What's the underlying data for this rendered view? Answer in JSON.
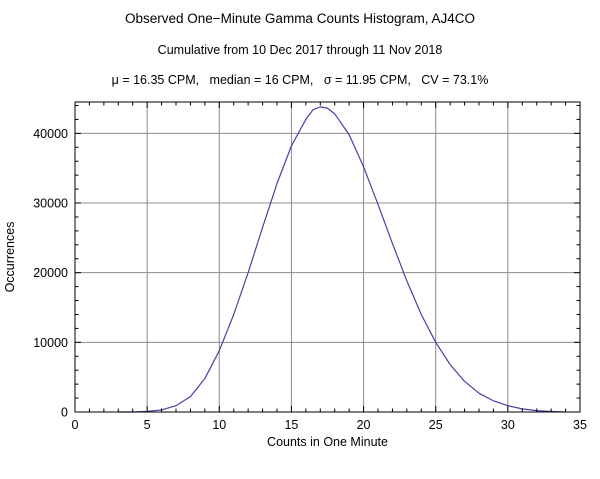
{
  "title": "Observed One−Minute Gamma Counts Histogram, AJ4CO",
  "subtitle": "Cumulative from 10 Dec 2017 through 11 Nov 2018",
  "stats_line": "μ = 16.35 CPM,   median = 16 CPM,   σ = 11.95 CPM,   CV = 73.1%",
  "chart_data": {
    "type": "line",
    "title": "Observed One−Minute Gamma Counts Histogram, AJ4CO",
    "subtitle": "Cumulative from 10 Dec 2017 through 11 Nov 2018",
    "annotations": [
      "μ = 16.35 CPM",
      "median = 16 CPM",
      "σ = 11.95 CPM",
      "CV = 73.1%"
    ],
    "xlabel": "Counts in One Minute",
    "ylabel": "Occurrences",
    "xlim": [
      0,
      35
    ],
    "ylim": [
      0,
      44500
    ],
    "xticks": [
      0,
      5,
      10,
      15,
      20,
      25,
      30,
      35
    ],
    "yticks": [
      0,
      10000,
      20000,
      30000,
      40000
    ],
    "x_minor_step": 1,
    "y_minor_step": 2000,
    "grid": true,
    "grid_color": "#8c8c8c",
    "frame_color": "#000000",
    "line_color": "#4343a4",
    "x": [
      3,
      4,
      5,
      6,
      7,
      8,
      9,
      10,
      11,
      12,
      13,
      14,
      15,
      16,
      16.5,
      17,
      17.5,
      18,
      19,
      20,
      21,
      22,
      23,
      24,
      25,
      26,
      27,
      28,
      29,
      30,
      31,
      32,
      33,
      34
    ],
    "y": [
      0,
      0,
      100,
      300,
      900,
      2200,
      4800,
      8800,
      14000,
      20000,
      26500,
      32800,
      38200,
      42000,
      43400,
      43800,
      43600,
      42800,
      39800,
      35200,
      29800,
      24200,
      18800,
      14000,
      10000,
      6800,
      4400,
      2700,
      1600,
      900,
      450,
      200,
      80,
      0
    ]
  }
}
